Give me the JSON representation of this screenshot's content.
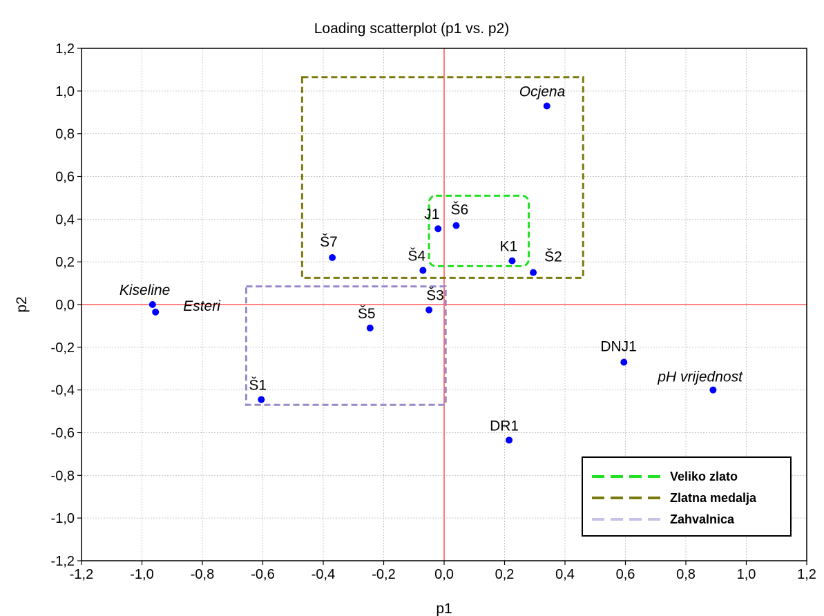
{
  "chart_data": {
    "type": "scatter",
    "title": "Loading scatterplot (p1 vs. p2)",
    "xlabel": "p1",
    "ylabel": "p2",
    "xlim": [
      -1.2,
      1.2
    ],
    "ylim": [
      -1.2,
      1.2
    ],
    "x_ticks": [
      "-1,2",
      "-1,0",
      "-0,8",
      "-0,6",
      "-0,4",
      "-0,2",
      "0,0",
      "0,2",
      "0,4",
      "0,6",
      "0,8",
      "1,0",
      "1,2"
    ],
    "y_ticks": [
      "1,2",
      "1,0",
      "0,8",
      "0,6",
      "0,4",
      "0,2",
      "0,0",
      "-0,2",
      "-0,4",
      "-0,6",
      "-0,8",
      "-1,0",
      "-1,2"
    ],
    "grid": true,
    "legend_position": "bottom-right",
    "point_color": "#0000ff",
    "reference_line_color": "#ff5a5a",
    "points": [
      {
        "label": "Ocjena",
        "x": 0.34,
        "y": 0.93,
        "italic": true
      },
      {
        "label": "Š6",
        "x": 0.04,
        "y": 0.37,
        "italic": false
      },
      {
        "label": "J1",
        "x": -0.02,
        "y": 0.355,
        "italic": false
      },
      {
        "label": "Š7",
        "x": -0.37,
        "y": 0.22,
        "italic": false
      },
      {
        "label": "Š4",
        "x": -0.07,
        "y": 0.16,
        "italic": false
      },
      {
        "label": "K1",
        "x": 0.225,
        "y": 0.205,
        "italic": false
      },
      {
        "label": "Š2",
        "x": 0.295,
        "y": 0.15,
        "italic": false
      },
      {
        "label": "Kiseline",
        "x": -0.965,
        "y": 0.0,
        "italic": true
      },
      {
        "label": "Esteri",
        "x": -0.955,
        "y": -0.035,
        "italic": true
      },
      {
        "label": "Š3",
        "x": -0.05,
        "y": -0.025,
        "italic": false
      },
      {
        "label": "Š5",
        "x": -0.245,
        "y": -0.11,
        "italic": false
      },
      {
        "label": "Š1",
        "x": -0.605,
        "y": -0.445,
        "italic": false
      },
      {
        "label": "DNJ1",
        "x": 0.595,
        "y": -0.27,
        "italic": false
      },
      {
        "label": "pH vrijednost",
        "x": 0.89,
        "y": -0.4,
        "italic": true
      },
      {
        "label": "DR1",
        "x": 0.215,
        "y": -0.635,
        "italic": false
      }
    ],
    "regions": [
      {
        "name": "Veliko zlato",
        "color": "#22e022",
        "x": [
          -0.05,
          0.28
        ],
        "y": [
          0.18,
          0.51
        ]
      },
      {
        "name": "Zlatna medalja",
        "color": "#7a7a10",
        "x": [
          -0.47,
          0.46
        ],
        "y": [
          0.125,
          1.065
        ]
      },
      {
        "name": "Zahvalnica",
        "color": "#9a88cc",
        "x": [
          -0.655,
          0.005
        ],
        "y": [
          -0.47,
          0.085
        ]
      }
    ],
    "legend": [
      {
        "label": "Veliko zlato",
        "color": "#22e022"
      },
      {
        "label": "Zlatna medalja",
        "color": "#7a7a10"
      },
      {
        "label": "Zahvalnica",
        "color": "#c8c2e8"
      }
    ]
  }
}
